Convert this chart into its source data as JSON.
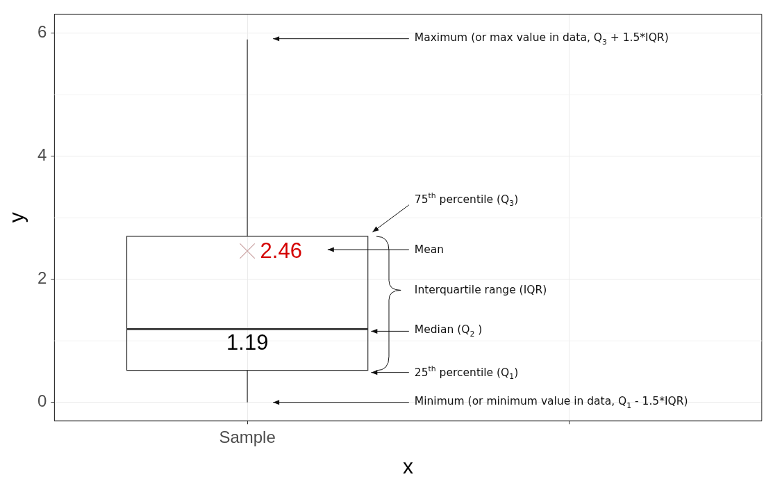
{
  "chart_data": {
    "type": "box",
    "xlabel": "x",
    "ylabel": "y",
    "categories": [
      "Sample",
      null
    ],
    "boxes": [
      {
        "low": 0,
        "q1": 0.52,
        "median": 1.19,
        "q3": 2.7,
        "high": 5.9,
        "mean": 2.46
      },
      null
    ],
    "color": "#333333",
    "ylim": [
      -0.3,
      6.31
    ],
    "yticks": [
      0,
      2,
      4,
      6
    ],
    "grid": true,
    "annotations": [
      "Maximum (or max value in data, Q$_{3}$ + 1.5*IQR)",
      "75$^{th}$ percentile (Q$_{3}$)",
      "Mean",
      "Interquartile range (IQR)",
      "Median (Q$_{2}$ )",
      "25$^{th}$ percentile (Q$_{1}$)",
      "Minimum (or minimum value in data, Q$_{1}$ - 1.5*IQR)",
      "2.46",
      {
        "text": "1.19",
        "x": "Sample",
        "y": 1.19
      }
    ]
  }
}
